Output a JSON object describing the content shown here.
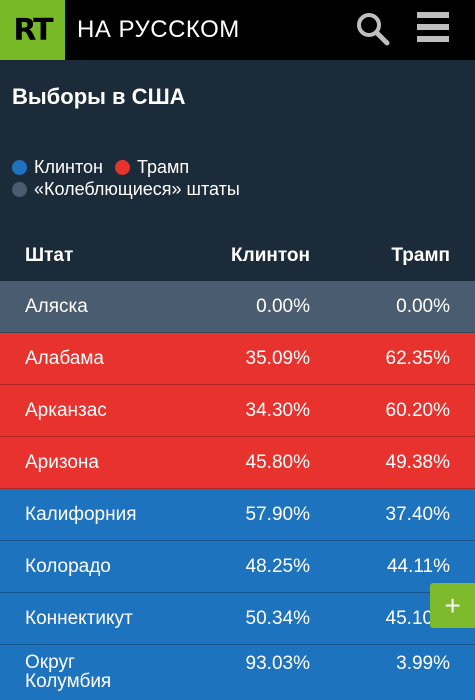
{
  "header": {
    "logo": "RT",
    "brand": "НА РУССКОМ"
  },
  "page": {
    "title": "Выборы в США"
  },
  "legend": {
    "clinton": {
      "label": "Клинтон",
      "color": "#1e73be"
    },
    "trump": {
      "label": "Трамп",
      "color": "#e8322d"
    },
    "swing": {
      "label": "«Колеблющиеся» штаты",
      "color": "#4a5d70"
    }
  },
  "table": {
    "headers": {
      "state": "Штат",
      "clinton": "Клинтон",
      "trump": "Трамп"
    },
    "rows": [
      {
        "state": "Аляска",
        "clinton": "0.00%",
        "trump": "0.00%",
        "color": "#4a5d70"
      },
      {
        "state": "Алабама",
        "clinton": "35.09%",
        "trump": "62.35%",
        "color": "#e8322d"
      },
      {
        "state": "Арканзас",
        "clinton": "34.30%",
        "trump": "60.20%",
        "color": "#e8322d"
      },
      {
        "state": "Аризона",
        "clinton": "45.80%",
        "trump": "49.38%",
        "color": "#e8322d"
      },
      {
        "state": "Калифорния",
        "clinton": "57.90%",
        "trump": "37.40%",
        "color": "#1e73be"
      },
      {
        "state": "Колорадо",
        "clinton": "48.25%",
        "trump": "44.11%",
        "color": "#1e73be"
      },
      {
        "state": "Коннектикут",
        "clinton": "50.34%",
        "trump": "45.10%",
        "color": "#1e73be"
      },
      {
        "state": "Округ Колумбия",
        "clinton": "93.03%",
        "trump": "3.99%",
        "color": "#1e73be"
      }
    ]
  },
  "fab": {
    "label": "+"
  }
}
